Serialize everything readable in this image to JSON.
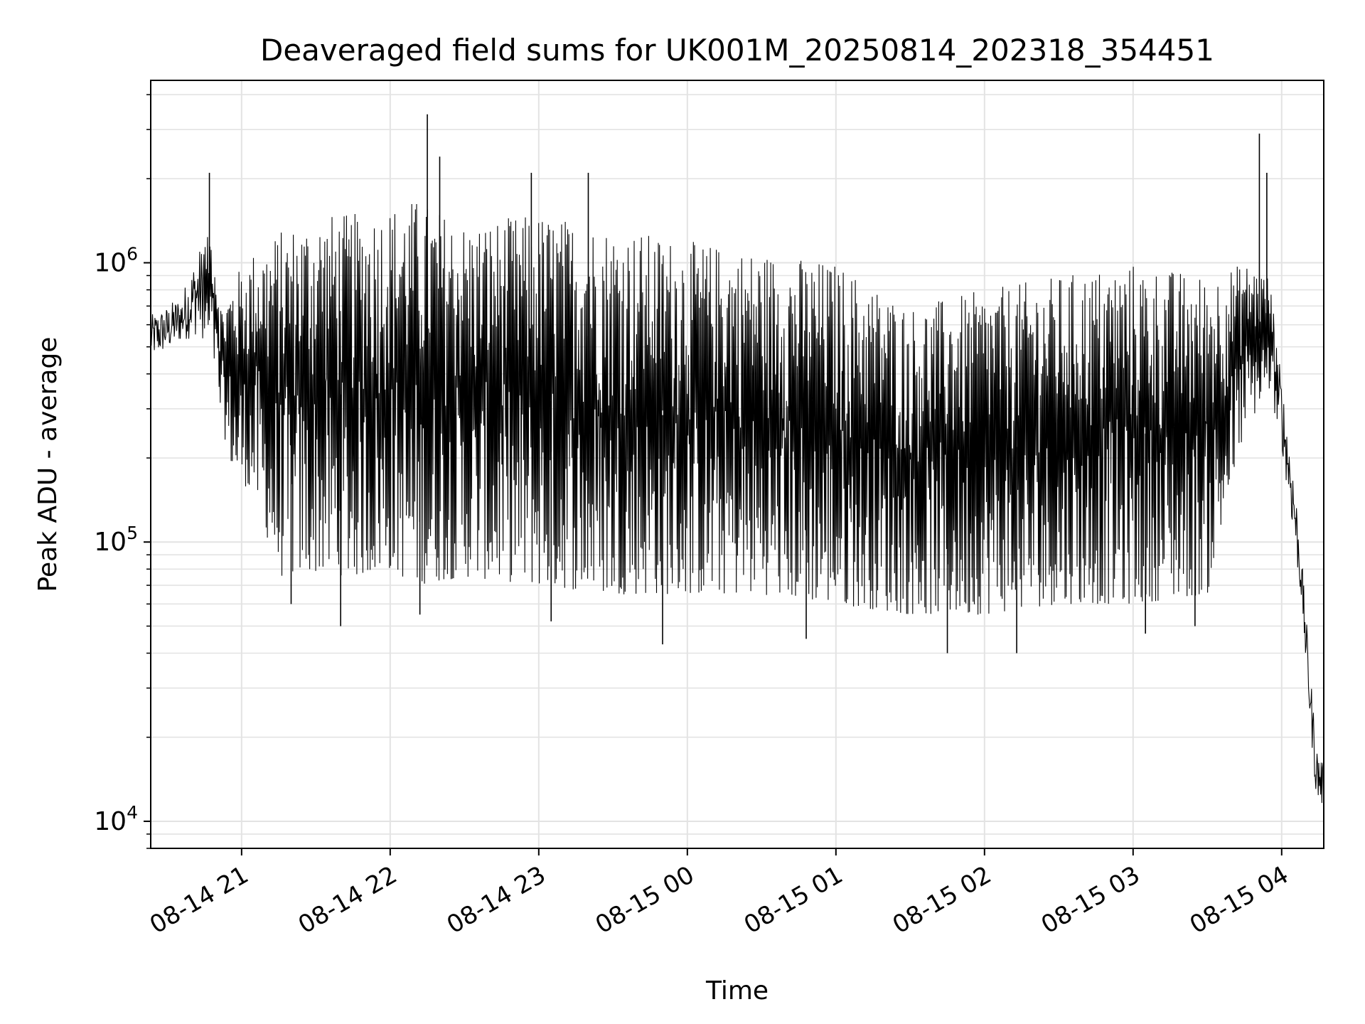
{
  "chart_data": {
    "type": "line",
    "title": "Deaveraged field sums for UK001M_20250814_202318_354451",
    "xlabel": "Time",
    "ylabel": "Peak ADU - average",
    "yscale": "log",
    "xlim": [
      "2025-08-14T20:23:18",
      "2025-08-15T04:17:00"
    ],
    "ylim": [
      8000,
      4500000
    ],
    "grid": true,
    "legend": "none",
    "line_color": "#000000",
    "x_ticks": [
      {
        "value": "2025-08-14T21:00:00",
        "label": "08-14 21"
      },
      {
        "value": "2025-08-14T22:00:00",
        "label": "08-14 22"
      },
      {
        "value": "2025-08-14T23:00:00",
        "label": "08-14 23"
      },
      {
        "value": "2025-08-15T00:00:00",
        "label": "08-15 00"
      },
      {
        "value": "2025-08-15T01:00:00",
        "label": "08-15 01"
      },
      {
        "value": "2025-08-15T02:00:00",
        "label": "08-15 02"
      },
      {
        "value": "2025-08-15T03:00:00",
        "label": "08-15 03"
      },
      {
        "value": "2025-08-15T04:00:00",
        "label": "08-15 04"
      }
    ],
    "y_ticks": [
      {
        "value": 10000,
        "base": "10",
        "exp": "4"
      },
      {
        "value": 100000,
        "base": "10",
        "exp": "5"
      },
      {
        "value": 1000000,
        "base": "10",
        "exp": "6"
      }
    ],
    "series": [
      {
        "points": [
          {
            "t": "2025-08-14T20:23:18",
            "low": 450000,
            "high": 650000
          },
          {
            "t": "2025-08-14T20:30:00",
            "low": 480000,
            "high": 700000
          },
          {
            "t": "2025-08-14T20:36:00",
            "low": 520000,
            "high": 780000
          },
          {
            "t": "2025-08-14T20:42:00",
            "low": 550000,
            "high": 1100000
          },
          {
            "t": "2025-08-14T20:48:00",
            "low": 500000,
            "high": 1300000
          },
          {
            "t": "2025-08-14T20:52:00",
            "low": 260000,
            "high": 700000
          },
          {
            "t": "2025-08-14T20:57:00",
            "low": 170000,
            "high": 900000
          },
          {
            "t": "2025-08-14T21:05:00",
            "low": 150000,
            "high": 1100000
          },
          {
            "t": "2025-08-14T21:15:00",
            "low": 75000,
            "high": 1300000
          },
          {
            "t": "2025-08-14T21:30:00",
            "low": 78000,
            "high": 1500000
          },
          {
            "t": "2025-08-14T21:45:00",
            "low": 75000,
            "high": 1500000
          },
          {
            "t": "2025-08-14T22:00:00",
            "low": 80000,
            "high": 1600000
          },
          {
            "t": "2025-08-14T22:10:00",
            "low": 70000,
            "high": 1700000
          },
          {
            "t": "2025-08-14T22:30:00",
            "low": 75000,
            "high": 1400000
          },
          {
            "t": "2025-08-14T23:00:00",
            "low": 70000,
            "high": 1500000
          },
          {
            "t": "2025-08-14T23:30:00",
            "low": 65000,
            "high": 1350000
          },
          {
            "t": "2025-08-15T00:00:00",
            "low": 65000,
            "high": 1200000
          },
          {
            "t": "2025-08-15T00:30:00",
            "low": 65000,
            "high": 1100000
          },
          {
            "t": "2025-08-15T01:00:00",
            "low": 60000,
            "high": 1000000
          },
          {
            "t": "2025-08-15T01:30:00",
            "low": 55000,
            "high": 700000
          },
          {
            "t": "2025-08-15T02:00:00",
            "low": 55000,
            "high": 800000
          },
          {
            "t": "2025-08-15T02:30:00",
            "low": 60000,
            "high": 900000
          },
          {
            "t": "2025-08-15T03:00:00",
            "low": 60000,
            "high": 1000000
          },
          {
            "t": "2025-08-15T03:30:00",
            "low": 65000,
            "high": 900000
          },
          {
            "t": "2025-08-15T03:45:00",
            "low": 250000,
            "high": 1000000
          },
          {
            "t": "2025-08-15T03:55:00",
            "low": 350000,
            "high": 900000
          },
          {
            "t": "2025-08-15T04:00:00",
            "low": 220000,
            "high": 380000
          },
          {
            "t": "2025-08-15T04:05:00",
            "low": 100000,
            "high": 180000
          },
          {
            "t": "2025-08-15T04:08:00",
            "low": 60000,
            "high": 90000
          },
          {
            "t": "2025-08-15T04:11:00",
            "low": 25000,
            "high": 40000
          },
          {
            "t": "2025-08-15T04:14:00",
            "low": 12000,
            "high": 19000
          },
          {
            "t": "2025-08-15T04:17:00",
            "low": 11000,
            "high": 16000
          }
        ],
        "spikes": [
          {
            "t": "2025-08-14T20:47:00",
            "value": 2100000
          },
          {
            "t": "2025-08-14T21:20:00",
            "value": 60000
          },
          {
            "t": "2025-08-14T21:40:00",
            "value": 50000
          },
          {
            "t": "2025-08-14T22:15:00",
            "value": 3400000
          },
          {
            "t": "2025-08-14T22:20:00",
            "value": 2400000
          },
          {
            "t": "2025-08-14T22:12:00",
            "value": 55000
          },
          {
            "t": "2025-08-14T22:57:00",
            "value": 2100000
          },
          {
            "t": "2025-08-14T23:20:00",
            "value": 2100000
          },
          {
            "t": "2025-08-14T23:05:00",
            "value": 52000
          },
          {
            "t": "2025-08-14T23:50:00",
            "value": 43000
          },
          {
            "t": "2025-08-15T00:48:00",
            "value": 45000
          },
          {
            "t": "2025-08-15T01:45:00",
            "value": 40000
          },
          {
            "t": "2025-08-15T02:13:00",
            "value": 40000
          },
          {
            "t": "2025-08-15T03:05:00",
            "value": 47000
          },
          {
            "t": "2025-08-15T03:25:00",
            "value": 50000
          },
          {
            "t": "2025-08-15T03:51:00",
            "value": 2900000
          },
          {
            "t": "2025-08-15T03:54:00",
            "value": 2100000
          }
        ]
      }
    ]
  }
}
